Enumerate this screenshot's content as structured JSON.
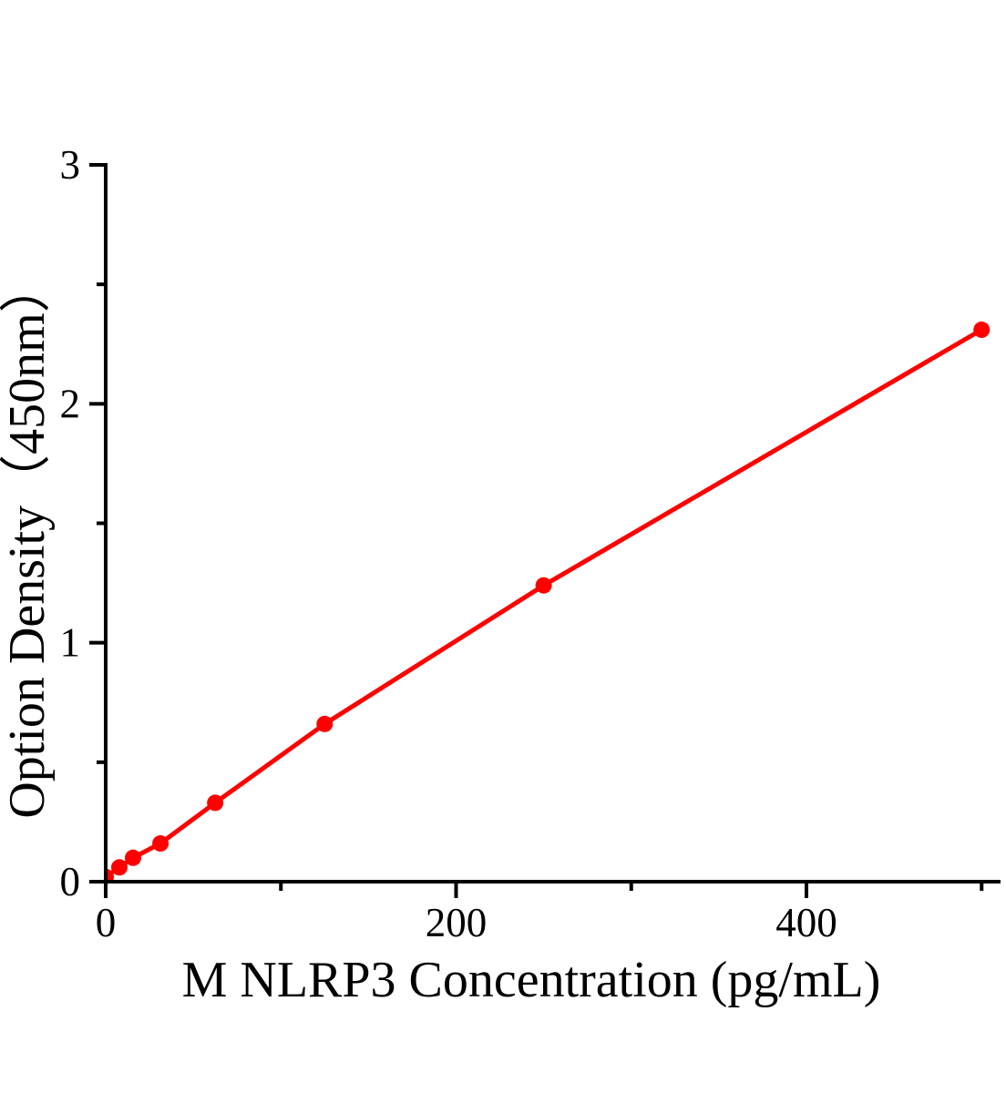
{
  "figure": {
    "background": "#ffffff"
  },
  "chart_data": {
    "type": "line",
    "title": "",
    "xlabel": "M NLRP3 Concentration (pg/mL)",
    "ylabel": "Option Density（450nm）",
    "x": [
      0,
      7.8,
      15.6,
      31.25,
      62.5,
      125,
      250,
      500
    ],
    "y": [
      0.02,
      0.06,
      0.1,
      0.16,
      0.33,
      0.66,
      1.24,
      2.31
    ],
    "xlim": [
      0,
      511
    ],
    "ylim": [
      0,
      3
    ],
    "x_major_ticks": [
      0,
      200,
      400
    ],
    "x_major_tick_labels": [
      "0",
      "200",
      "400"
    ],
    "x_minor_ticks": [
      100,
      300,
      500
    ],
    "y_major_ticks": [
      0,
      1,
      2,
      3
    ],
    "y_major_tick_labels": [
      "0",
      "1",
      "2",
      "3"
    ],
    "y_minor_ticks": [
      0.5,
      1.5,
      2.5
    ],
    "grid": false,
    "legend": "none",
    "line_color": "#ff0000",
    "marker_color": "#ff0000",
    "marker_shape": "circle",
    "axis_color": "#000000",
    "text_color": "#000000"
  }
}
